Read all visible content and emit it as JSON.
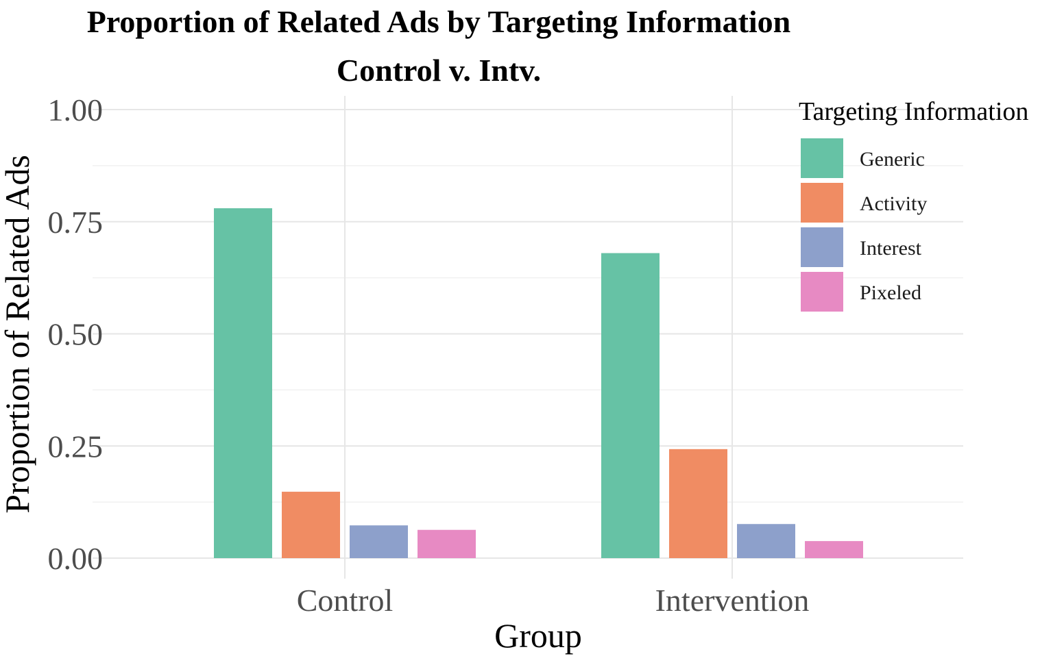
{
  "chart_data": {
    "type": "bar",
    "title": "Proportion of Related Ads by Targeting Information",
    "subtitle": "Control v. Intv.",
    "xlabel": "Group",
    "ylabel": "Proportion of Related Ads",
    "categories": [
      "Control",
      "Intervention"
    ],
    "ylim": [
      0,
      1
    ],
    "yticks": [
      "0.00",
      "0.25",
      "0.50",
      "0.75",
      "1.00"
    ],
    "ytick_values": [
      0,
      0.25,
      0.5,
      0.75,
      1.0
    ],
    "grid": true,
    "legend": {
      "title": "Targeting Information",
      "position": "top-right"
    },
    "series": [
      {
        "name": "Generic",
        "color": "#66c2a5",
        "values": [
          0.78,
          0.68
        ]
      },
      {
        "name": "Activity",
        "color": "#f08c63",
        "values": [
          0.148,
          0.243
        ]
      },
      {
        "name": "Interest",
        "color": "#8da0cb",
        "values": [
          0.073,
          0.076
        ]
      },
      {
        "name": "Pixeled",
        "color": "#e78ac3",
        "values": [
          0.063,
          0.038
        ]
      }
    ]
  }
}
